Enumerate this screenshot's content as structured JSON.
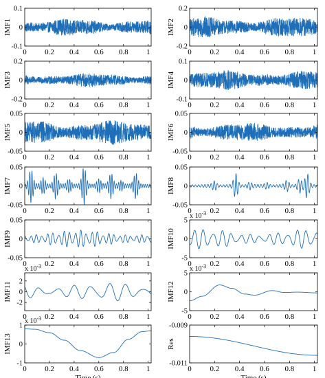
{
  "figure": {
    "series_color": "#1f6fb8",
    "axis_color": "#000000"
  },
  "chart_data": [
    {
      "type": "line",
      "ylabel": "IMF1",
      "ylim": [
        -0.1,
        0.1
      ],
      "yticks": [
        "-0.1",
        "0",
        "0.1"
      ],
      "xlim": [
        0,
        1.024
      ],
      "xticks": [
        "0",
        "0.2",
        "0.4",
        "0.6",
        "0.8",
        "1"
      ],
      "xlabel": "",
      "exponent": "",
      "signal": {
        "kind": "noise",
        "amplitude": 0.03,
        "period": 0.004
      }
    },
    {
      "type": "line",
      "ylabel": "IMF2",
      "ylim": [
        -0.2,
        0.2
      ],
      "yticks": [
        "-0.2",
        "0",
        "0.2"
      ],
      "xlim": [
        0,
        1.024
      ],
      "xticks": [
        "0",
        "0.2",
        "0.4",
        "0.6",
        "0.8",
        "1"
      ],
      "xlabel": "",
      "exponent": "",
      "signal": {
        "kind": "noise",
        "amplitude": 0.075,
        "period": 0.004
      }
    },
    {
      "type": "line",
      "ylabel": "IMF3",
      "ylim": [
        -0.2,
        0.2
      ],
      "yticks": [
        "-0.2",
        "0",
        "0.2"
      ],
      "xlim": [
        0,
        1.024
      ],
      "xticks": [
        "0",
        "0.2",
        "0.4",
        "0.6",
        "0.8",
        "1"
      ],
      "xlabel": "",
      "exponent": "",
      "signal": {
        "kind": "noise",
        "amplitude": 0.05,
        "period": 0.005
      }
    },
    {
      "type": "line",
      "ylabel": "IMF4",
      "ylim": [
        -0.1,
        0.1
      ],
      "yticks": [
        "-0.1",
        "0",
        "0.1"
      ],
      "xlim": [
        0,
        1.024
      ],
      "xticks": [
        "0",
        "0.2",
        "0.4",
        "0.6",
        "0.8",
        "1"
      ],
      "xlabel": "",
      "exponent": "",
      "signal": {
        "kind": "noise",
        "amplitude": 0.035,
        "period": 0.006
      }
    },
    {
      "type": "line",
      "ylabel": "IMF5",
      "ylim": [
        -0.05,
        0.05
      ],
      "yticks": [
        "-0.05",
        "0",
        "0.05"
      ],
      "xlim": [
        0,
        1.024
      ],
      "xticks": [
        "0",
        "0.2",
        "0.4",
        "0.6",
        "0.8",
        "1"
      ],
      "xlabel": "",
      "exponent": "",
      "signal": {
        "kind": "noise",
        "amplitude": 0.022,
        "period": 0.008
      }
    },
    {
      "type": "line",
      "ylabel": "IMF6",
      "ylim": [
        -0.05,
        0.05
      ],
      "yticks": [
        "-0.05",
        "0",
        "0.05"
      ],
      "xlim": [
        0,
        1.024
      ],
      "xticks": [
        "0",
        "0.2",
        "0.4",
        "0.6",
        "0.8",
        "1"
      ],
      "xlabel": "",
      "exponent": "",
      "signal": {
        "kind": "noise",
        "amplitude": 0.017,
        "period": 0.011
      }
    },
    {
      "type": "line",
      "ylabel": "IMF7",
      "ylim": [
        -0.05,
        0.05
      ],
      "yticks": [
        "-0.05",
        "0",
        "0.05"
      ],
      "xlim": [
        0,
        1.024
      ],
      "xticks": [
        "0",
        "0.2",
        "0.4",
        "0.6",
        "0.8",
        "1"
      ],
      "xlabel": "",
      "exponent": "",
      "signal": {
        "kind": "bursts",
        "amplitude": 0.006,
        "period": 0.018,
        "bursts": [
          [
            0.05,
            0.04
          ],
          [
            0.15,
            0.025
          ],
          [
            0.25,
            0.03
          ],
          [
            0.36,
            0.02
          ],
          [
            0.48,
            0.045
          ],
          [
            0.6,
            0.02
          ],
          [
            0.7,
            0.03
          ],
          [
            0.78,
            0.015
          ],
          [
            0.9,
            0.03
          ]
        ]
      }
    },
    {
      "type": "line",
      "ylabel": "IMF8",
      "ylim": [
        -0.05,
        0.05
      ],
      "yticks": [
        "-0.05",
        "0",
        "0.05"
      ],
      "xlim": [
        0,
        1.024
      ],
      "xticks": [
        "0",
        "0.2",
        "0.4",
        "0.6",
        "0.8",
        "1"
      ],
      "xlabel": "",
      "exponent": "",
      "signal": {
        "kind": "bursts",
        "amplitude": 0.004,
        "period": 0.025,
        "bursts": [
          [
            0.2,
            0.012
          ],
          [
            0.37,
            0.03
          ],
          [
            0.48,
            0.01
          ],
          [
            0.62,
            0.008
          ],
          [
            0.78,
            0.012
          ],
          [
            0.88,
            0.022
          ],
          [
            0.94,
            0.03
          ]
        ]
      }
    },
    {
      "type": "line",
      "ylabel": "IMF9",
      "ylim": [
        -0.05,
        0.05
      ],
      "yticks": [
        "-0.05",
        "0",
        "0.05"
      ],
      "xlim": [
        0,
        1.024
      ],
      "xticks": [
        "0",
        "0.2",
        "0.4",
        "0.6",
        "0.8",
        "1"
      ],
      "xlabel": "",
      "exponent": "",
      "signal": {
        "kind": "waves",
        "amplitude": 0.02,
        "period": 0.045
      }
    },
    {
      "type": "line",
      "ylabel": "IMF10",
      "ylim": [
        -5,
        5
      ],
      "yticks": [
        "-5",
        "0",
        "5"
      ],
      "xlim": [
        0,
        1.024
      ],
      "xticks": [
        "0",
        "0.2",
        "0.4",
        "0.6",
        "0.8",
        "1"
      ],
      "xlabel": "",
      "exponent": "x 10^-3",
      "signal": {
        "kind": "waves",
        "amplitude": 2.3,
        "period": 0.075
      }
    },
    {
      "type": "line",
      "ylabel": "IMF11",
      "ylim": [
        -3.5,
        3.5
      ],
      "yticks": [
        "-2",
        "0",
        "2"
      ],
      "xlim": [
        0,
        1.024
      ],
      "xticks": [
        "0",
        "0.2",
        "0.4",
        "0.6",
        "0.8",
        "1"
      ],
      "xlabel": "",
      "exponent": "x 10^-3",
      "signal": {
        "kind": "waves",
        "amplitude": 1.6,
        "period": 0.14
      }
    },
    {
      "type": "line",
      "ylabel": "IMF12",
      "ylim": [
        -5,
        5
      ],
      "yticks": [
        "-5",
        "0",
        "5"
      ],
      "xlim": [
        0,
        1.024
      ],
      "xticks": [
        "0",
        "0.2",
        "0.4",
        "0.6",
        "0.8",
        "1"
      ],
      "xlabel": "",
      "exponent": "x 10^-3",
      "signal": {
        "kind": "points",
        "x": [
          0,
          0.1,
          0.24,
          0.34,
          0.44,
          0.52,
          0.66,
          0.76,
          0.86,
          1.024
        ],
        "y": [
          -2.4,
          -1.2,
          1.8,
          0.9,
          -0.6,
          -0.9,
          0.3,
          -0.2,
          -0.1,
          -0.3
        ]
      }
    },
    {
      "type": "line",
      "ylabel": "IMF13",
      "ylim": [
        -1,
        1
      ],
      "yticks": [
        "-1",
        "0",
        "1"
      ],
      "xlim": [
        0,
        1.024
      ],
      "xticks": [
        "0",
        "0.2",
        "0.4",
        "0.6",
        "0.8",
        "1"
      ],
      "xlabel": "Time (s)",
      "exponent": "x 10^-3",
      "signal": {
        "kind": "points",
        "x": [
          0,
          0.08,
          0.2,
          0.32,
          0.45,
          0.6,
          0.72,
          0.84,
          0.95,
          1.024
        ],
        "y": [
          0.8,
          0.78,
          0.6,
          0.2,
          -0.35,
          -0.72,
          -0.45,
          0.25,
          0.65,
          0.7
        ]
      }
    },
    {
      "type": "line",
      "ylabel": "Res",
      "ylim": [
        -0.011,
        -0.009
      ],
      "yticks": [
        "-0.011",
        "-0.009"
      ],
      "xlim": [
        0,
        1.024
      ],
      "xticks": [
        "0",
        "0.2",
        "0.4",
        "0.6",
        "0.8",
        "1"
      ],
      "xlabel": "Time (s)",
      "exponent": "",
      "signal": {
        "kind": "points",
        "x": [
          0,
          1.024
        ],
        "y": [
          -0.0096,
          -0.0106
        ]
      }
    }
  ]
}
